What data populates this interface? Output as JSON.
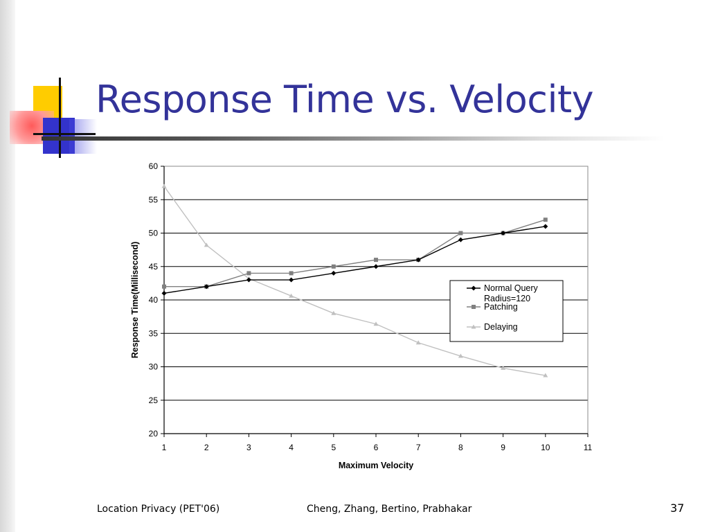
{
  "slide": {
    "title": "Response Time vs. Velocity",
    "footer_left": "Location Privacy (PET'06)",
    "footer_center": "Cheng, Zhang, Bertino, Prabhakar",
    "page_number": "37",
    "title_color": "#333399"
  },
  "chart_data": {
    "type": "line",
    "title": "",
    "xlabel": "Maximum Velocity",
    "ylabel": "Response Time(Millisecond)",
    "xlim": [
      1,
      11
    ],
    "ylim": [
      20,
      60
    ],
    "x_ticks": [
      1,
      2,
      3,
      4,
      5,
      6,
      7,
      8,
      9,
      10,
      11
    ],
    "y_ticks": [
      20,
      25,
      30,
      35,
      40,
      45,
      50,
      55,
      60
    ],
    "grid": "horizontal",
    "legend_position": "right",
    "x": [
      1,
      2,
      3,
      4,
      5,
      6,
      7,
      8,
      9,
      10
    ],
    "series": [
      {
        "name": "Normal Query Radius=120",
        "legend_lines": [
          "Normal Query",
          "Radius=120"
        ],
        "marker": "diamond",
        "color": "#000000",
        "values": [
          41,
          42,
          43,
          43,
          44,
          45,
          46,
          49,
          50,
          51
        ]
      },
      {
        "name": "Patching",
        "legend_lines": [
          "Patching"
        ],
        "marker": "square",
        "color": "#808080",
        "values": [
          42,
          42,
          44,
          44,
          45,
          46,
          46,
          50,
          50,
          52
        ]
      },
      {
        "name": "Delaying",
        "legend_lines": [
          "Delaying"
        ],
        "marker": "triangle",
        "color": "#c0c0c0",
        "values": [
          57,
          48.2,
          43.2,
          40.6,
          38,
          36.4,
          33.6,
          31.6,
          29.8,
          28.7
        ]
      }
    ]
  }
}
